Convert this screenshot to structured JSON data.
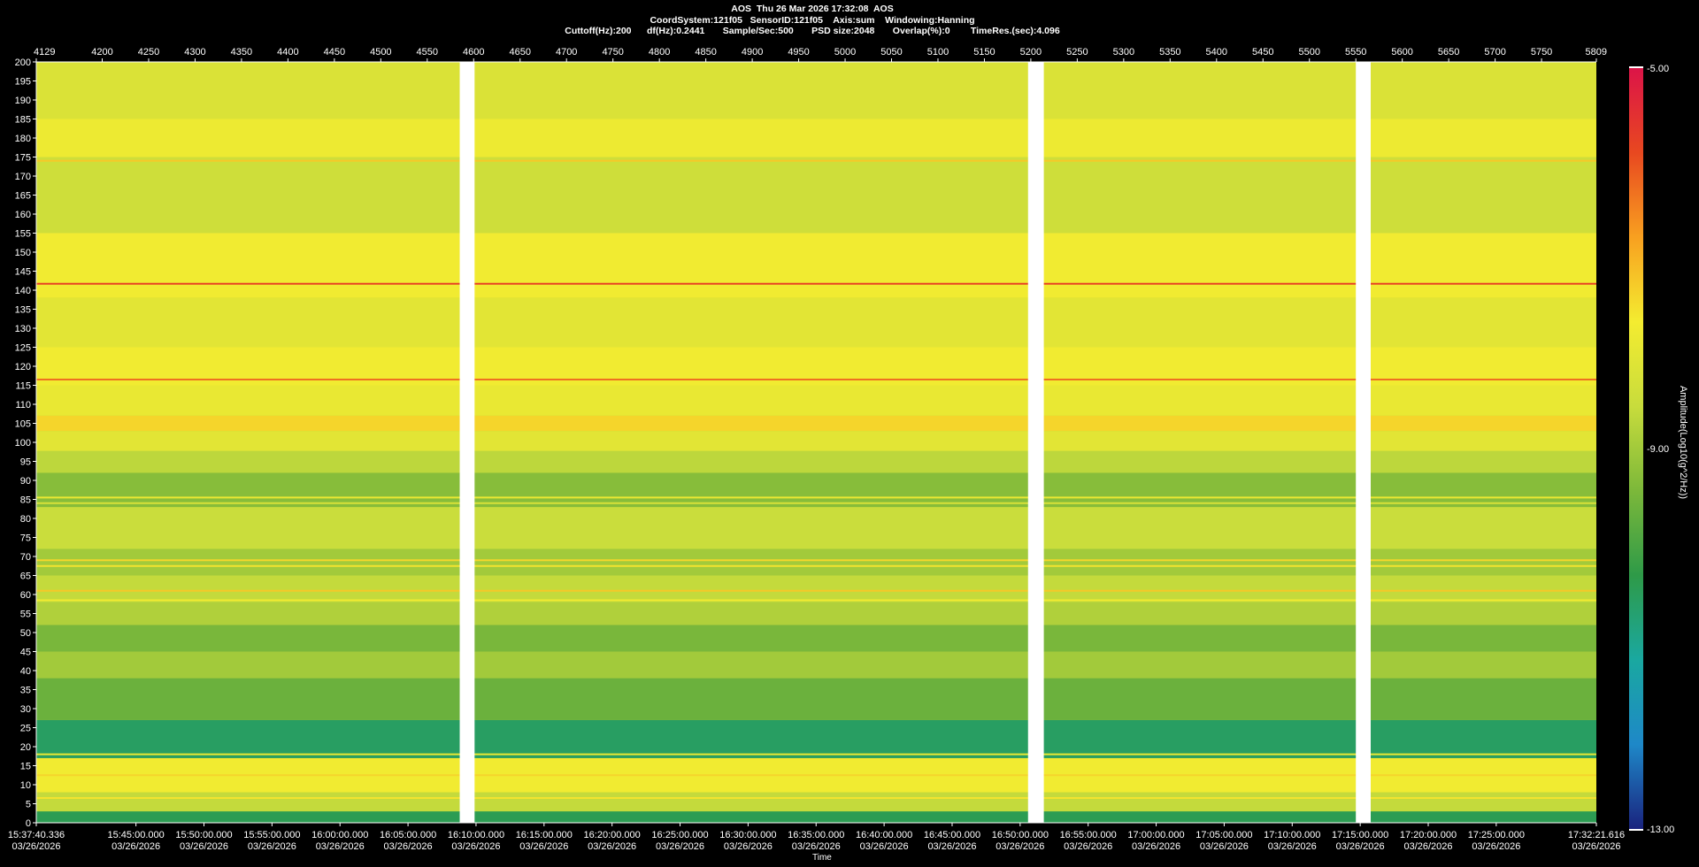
{
  "header": {
    "line1": "AOS  Thu 26 Mar 2026 17:32:08  AOS",
    "line2": "CoordSystem:121f05   SensorID:121f05    Axis:sum    Windowing:Hanning",
    "line3": "Cuttoff(Hz):200      df(Hz):0.2441       Sample/Sec:500       PSD size:2048       Overlap(%):0        TimeRes.(sec):4.096"
  },
  "chart_data": {
    "type": "heatmap",
    "title": "AOS  Thu 26 Mar 2026 17:32:08  AOS",
    "xlabel": "Time",
    "ylabel": "",
    "colorbar_label": "Amplitude(Log10(g^2/Hz))",
    "colorbar_ticks": [
      "-5.00",
      "-9.00",
      "-13.00"
    ],
    "colorbar_range": [
      -13,
      -5
    ],
    "ylim": [
      0,
      200
    ],
    "y_ticks": [
      0,
      5,
      10,
      15,
      20,
      25,
      30,
      35,
      40,
      45,
      50,
      55,
      60,
      65,
      70,
      75,
      80,
      85,
      90,
      95,
      100,
      105,
      110,
      115,
      120,
      125,
      130,
      135,
      140,
      145,
      150,
      155,
      160,
      165,
      170,
      175,
      180,
      185,
      190,
      195,
      200
    ],
    "top_axis_range": [
      4129,
      5809
    ],
    "top_axis_ticks": [
      "4129",
      "4200",
      "4250",
      "4300",
      "4350",
      "4400",
      "4450",
      "4500",
      "4550",
      "4600",
      "4650",
      "4700",
      "4750",
      "4800",
      "4850",
      "4900",
      "4950",
      "5000",
      "5050",
      "5100",
      "5150",
      "5200",
      "5250",
      "5300",
      "5350",
      "5400",
      "5450",
      "5500",
      "5550",
      "5600",
      "5650",
      "5700",
      "5750",
      "5809"
    ],
    "x_ticks": [
      {
        "time": "15:37:40.336",
        "date": "03/26/2026"
      },
      {
        "time": "15:45:00.000",
        "date": "03/26/2026"
      },
      {
        "time": "15:50:00.000",
        "date": "03/26/2026"
      },
      {
        "time": "15:55:00.000",
        "date": "03/26/2026"
      },
      {
        "time": "16:00:00.000",
        "date": "03/26/2026"
      },
      {
        "time": "16:05:00.000",
        "date": "03/26/2026"
      },
      {
        "time": "16:10:00.000",
        "date": "03/26/2026"
      },
      {
        "time": "16:15:00.000",
        "date": "03/26/2026"
      },
      {
        "time": "16:20:00.000",
        "date": "03/26/2026"
      },
      {
        "time": "16:25:00.000",
        "date": "03/26/2026"
      },
      {
        "time": "16:30:00.000",
        "date": "03/26/2026"
      },
      {
        "time": "16:35:00.000",
        "date": "03/26/2026"
      },
      {
        "time": "16:40:00.000",
        "date": "03/26/2026"
      },
      {
        "time": "16:45:00.000",
        "date": "03/26/2026"
      },
      {
        "time": "16:50:00.000",
        "date": "03/26/2026"
      },
      {
        "time": "16:55:00.000",
        "date": "03/26/2026"
      },
      {
        "time": "17:00:00.000",
        "date": "03/26/2026"
      },
      {
        "time": "17:05:00.000",
        "date": "03/26/2026"
      },
      {
        "time": "17:10:00.000",
        "date": "03/26/2026"
      },
      {
        "time": "17:15:00.000",
        "date": "03/26/2026"
      },
      {
        "time": "17:20:00.000",
        "date": "03/26/2026"
      },
      {
        "time": "17:25:00.000",
        "date": "03/26/2026"
      },
      {
        "time": "17:32:21.616",
        "date": "03/26/2026"
      }
    ],
    "data_gaps_top_axis": [
      [
        4585,
        4601
      ],
      [
        5197,
        5214
      ],
      [
        5550,
        5566
      ]
    ],
    "frequency_bands": [
      {
        "lo": 0,
        "hi": 3,
        "level": 0.32
      },
      {
        "lo": 3,
        "hi": 8,
        "level": 0.55
      },
      {
        "lo": 8,
        "hi": 17,
        "level": 0.66
      },
      {
        "lo": 17,
        "hi": 27,
        "level": 0.3
      },
      {
        "lo": 27,
        "hi": 38,
        "level": 0.42
      },
      {
        "lo": 38,
        "hi": 45,
        "level": 0.5
      },
      {
        "lo": 45,
        "hi": 52,
        "level": 0.44
      },
      {
        "lo": 52,
        "hi": 58,
        "level": 0.52
      },
      {
        "lo": 58,
        "hi": 65,
        "level": 0.55
      },
      {
        "lo": 65,
        "hi": 72,
        "level": 0.5
      },
      {
        "lo": 72,
        "hi": 83,
        "level": 0.56
      },
      {
        "lo": 83,
        "hi": 92,
        "level": 0.46
      },
      {
        "lo": 92,
        "hi": 98,
        "level": 0.54
      },
      {
        "lo": 98,
        "hi": 103,
        "level": 0.62
      },
      {
        "lo": 103,
        "hi": 107,
        "level": 0.7
      },
      {
        "lo": 107,
        "hi": 115,
        "level": 0.64
      },
      {
        "lo": 115,
        "hi": 125,
        "level": 0.66
      },
      {
        "lo": 125,
        "hi": 138,
        "level": 0.62
      },
      {
        "lo": 138,
        "hi": 155,
        "level": 0.66
      },
      {
        "lo": 155,
        "hi": 175,
        "level": 0.57
      },
      {
        "lo": 175,
        "hi": 185,
        "level": 0.65
      },
      {
        "lo": 185,
        "hi": 200,
        "level": 0.6
      }
    ],
    "tone_lines": [
      {
        "freq": 174,
        "level": 0.72
      },
      {
        "freq": 141.7,
        "level": 0.9
      },
      {
        "freq": 116.5,
        "level": 0.84
      },
      {
        "freq": 98,
        "level": 0.62
      },
      {
        "freq": 85.5,
        "level": 0.64
      },
      {
        "freq": 84,
        "level": 0.6
      },
      {
        "freq": 69,
        "level": 0.7
      },
      {
        "freq": 67.5,
        "level": 0.68
      },
      {
        "freq": 61,
        "level": 0.72
      },
      {
        "freq": 58.5,
        "level": 0.66
      },
      {
        "freq": 18,
        "level": 0.64
      },
      {
        "freq": 12.5,
        "level": 0.7
      },
      {
        "freq": 6.5,
        "level": 0.68
      }
    ],
    "colors": {
      "background": "#000000",
      "gap": "#ffffff",
      "colormap": [
        "#1a237e",
        "#1e88c8",
        "#1aa8a0",
        "#2e9a48",
        "#7cb83a",
        "#c8dc3c",
        "#f4ec30",
        "#f8a020",
        "#e84820",
        "#dc1448"
      ]
    }
  }
}
